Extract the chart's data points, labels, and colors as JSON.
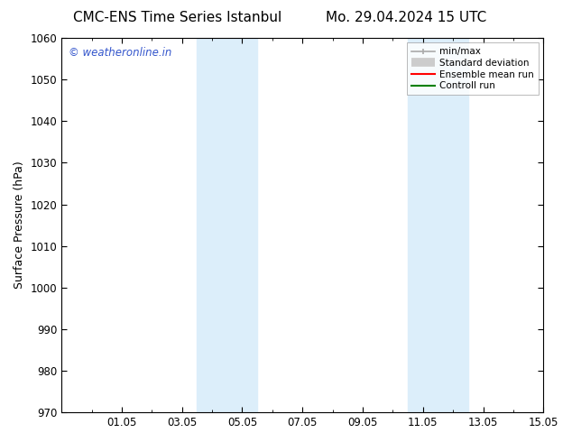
{
  "title_left": "CMC-ENS Time Series Istanbul",
  "title_right": "Mo. 29.04.2024 15 UTC",
  "ylabel": "Surface Pressure (hPa)",
  "ylim": [
    970,
    1060
  ],
  "yticks": [
    970,
    980,
    990,
    1000,
    1010,
    1020,
    1030,
    1040,
    1050,
    1060
  ],
  "xlim": [
    0,
    16
  ],
  "xtick_labels": [
    "01.05",
    "03.05",
    "05.05",
    "07.05",
    "09.05",
    "11.05",
    "13.05",
    "15.05"
  ],
  "xtick_positions": [
    2,
    4,
    6,
    8,
    10,
    12,
    14,
    16
  ],
  "shaded_regions": [
    {
      "x_start": 4.5,
      "x_end": 6.5,
      "color": "#dceefa"
    },
    {
      "x_start": 11.5,
      "x_end": 13.5,
      "color": "#dceefa"
    }
  ],
  "legend_items": [
    {
      "label": "min/max",
      "color": "#aaaaaa",
      "lw": 1.2
    },
    {
      "label": "Standard deviation",
      "color": "#cccccc",
      "lw": 6
    },
    {
      "label": "Ensemble mean run",
      "color": "red",
      "lw": 1.5
    },
    {
      "label": "Controll run",
      "color": "green",
      "lw": 1.5
    }
  ],
  "watermark": "© weatheronline.in",
  "watermark_color": "#3355cc",
  "background_color": "#ffffff",
  "title_fontsize": 11,
  "axis_fontsize": 9,
  "tick_fontsize": 8.5
}
